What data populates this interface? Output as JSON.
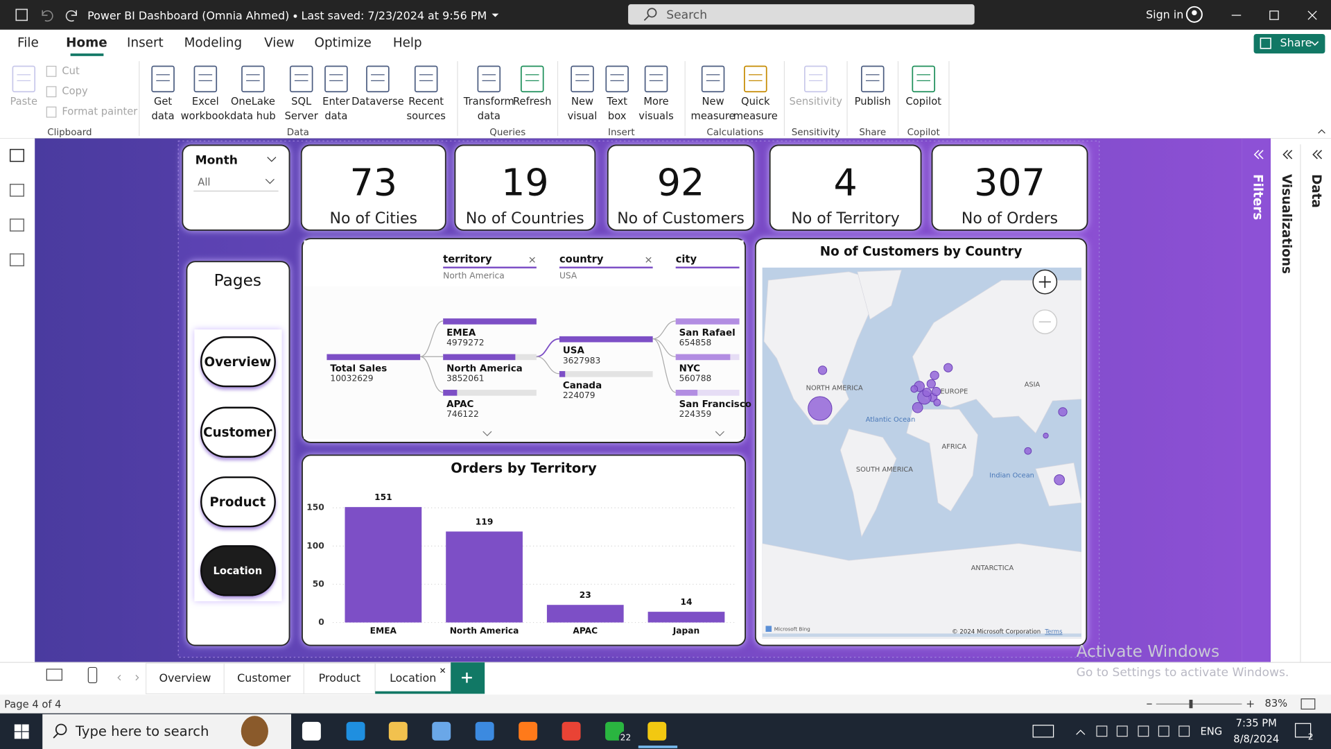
{
  "window": {
    "title": "Power BI Dashboard (Omnia Ahmed)",
    "saved": "Last saved: 7/23/2024 at 9:56 PM",
    "search": "Search",
    "sign_in": "Sign in"
  },
  "menu": [
    "File",
    "Home",
    "Insert",
    "Modeling",
    "View",
    "Optimize",
    "Help"
  ],
  "share": "Share",
  "ribbon": [
    {
      "group": "Clipboard",
      "items": [
        [
          "Paste"
        ],
        [
          "Cut"
        ],
        [
          "Copy"
        ],
        [
          "Format painter"
        ]
      ]
    },
    {
      "group": "Data",
      "items": [
        [
          "Get",
          "data"
        ],
        [
          "Excel",
          "workbook"
        ],
        [
          "OneLake",
          "data hub"
        ],
        [
          "SQL",
          "Server"
        ],
        [
          "Enter",
          "data"
        ],
        [
          "Dataverse"
        ],
        [
          "Recent",
          "sources"
        ]
      ]
    },
    {
      "group": "Queries",
      "items": [
        [
          "Transform",
          "data"
        ],
        [
          "Refresh"
        ]
      ]
    },
    {
      "group": "Insert",
      "items": [
        [
          "New",
          "visual"
        ],
        [
          "Text",
          "box"
        ],
        [
          "More",
          "visuals"
        ]
      ]
    },
    {
      "group": "Calculations",
      "items": [
        [
          "New",
          "measure"
        ],
        [
          "Quick",
          "measure"
        ]
      ]
    },
    {
      "group": "Sensitivity",
      "items": [
        [
          "Sensitivity"
        ]
      ]
    },
    {
      "group": "Share",
      "items": [
        [
          "Publish"
        ]
      ]
    },
    {
      "group": "Copilot",
      "items": [
        [
          "Copilot"
        ]
      ]
    }
  ],
  "slicer": {
    "title": "Month",
    "value": "All"
  },
  "kpis": [
    {
      "value": 73,
      "label": "No of Cities"
    },
    {
      "value": 19,
      "label": "No of Countries"
    },
    {
      "value": 92,
      "label": "No of Customers"
    },
    {
      "value": 4,
      "label": "No of Territory"
    },
    {
      "value": 307,
      "label": "No of Orders"
    }
  ],
  "pages": {
    "title": "Pages",
    "buttons": [
      "Overview",
      "Customer",
      "Product",
      "Location"
    ]
  },
  "decomposition_tree": {
    "columns": [
      {
        "name": "territory",
        "filter": "North America"
      },
      {
        "name": "country",
        "filter": "USA"
      },
      {
        "name": "city"
      }
    ],
    "root": {
      "name": "Total Sales",
      "value": 10032629
    },
    "levels": [
      [
        {
          "name": "EMEA",
          "value": 4979272
        },
        {
          "name": "North America",
          "value": 3852061
        },
        {
          "name": "APAC",
          "value": 746122
        }
      ],
      [
        {
          "name": "USA",
          "value": 3627983
        },
        {
          "name": "Canada",
          "value": 224079
        }
      ],
      [
        {
          "name": "San Rafael",
          "value": 654858
        },
        {
          "name": "NYC",
          "value": 560788
        },
        {
          "name": "San Francisco",
          "value": 224359
        }
      ]
    ]
  },
  "chart_data": {
    "type": "bar",
    "title": "Orders by Territory",
    "categories": [
      "EMEA",
      "North America",
      "APAC",
      "Japan"
    ],
    "values": [
      151,
      119,
      23,
      14
    ],
    "color": "#7d4fc6",
    "ylim": [
      0,
      160
    ],
    "yticks": [
      0,
      50,
      100,
      150
    ],
    "grid": true
  },
  "map": {
    "title": "No of Customers by Country",
    "labels": [
      "NORTH AMERICA",
      "EUROPE",
      "ASIA",
      "Atlantic Ocean",
      "AFRICA",
      "SOUTH AMERICA",
      "Indian Ocean",
      "ANTARCTICA"
    ],
    "attribution": [
      "Microsoft Bing",
      "© 2024 Microsoft Corporation",
      "Terms"
    ]
  },
  "panes": [
    "Filters",
    "Visualizations",
    "Data"
  ],
  "tabs": [
    "Overview",
    "Customer",
    "Product",
    "Location"
  ],
  "status": {
    "page": "Page 4 of 4",
    "zoom": "83%"
  },
  "watermark": {
    "title": "Activate Windows",
    "text": "Go to Settings to activate Windows."
  },
  "taskbar": {
    "search": "Type here to search",
    "badge": "22",
    "lang": "ENG",
    "time": "7:35 PM",
    "date": "8/8/2024",
    "notifications": "2"
  }
}
